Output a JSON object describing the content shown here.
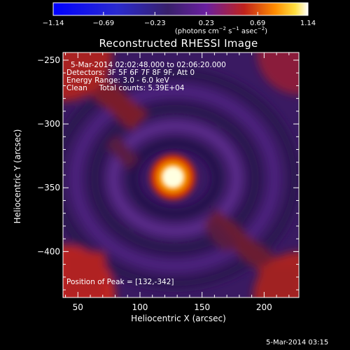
{
  "chart_data": {
    "type": "heatmap",
    "title": "Reconstructed RHESSI Image",
    "xlabel": "Heliocentric X (arcsec)",
    "ylabel": "Heliocentric Y (arcsec)",
    "xlim": [
      38,
      228
    ],
    "ylim": [
      -436,
      -244
    ],
    "xticks": [
      50,
      100,
      150,
      200
    ],
    "yticks": [
      -250,
      -300,
      -350,
      -400
    ],
    "xtick_labels": [
      "50",
      "100",
      "150",
      "200"
    ],
    "ytick_labels": [
      "−250",
      "−300",
      "−350",
      "−400"
    ],
    "peak": {
      "x": 132,
      "y": -342
    },
    "colorbar": {
      "min": -1.14,
      "max": 1.14,
      "ticks": [
        -1.14,
        -0.69,
        -0.23,
        0.23,
        0.69,
        1.14
      ],
      "tick_labels": [
        "−1.14",
        "−0.69",
        "−0.23",
        "0.23",
        "0.69",
        "1.14"
      ],
      "unit_parts": [
        "(photons cm",
        "−2",
        " s",
        "−1",
        " asec",
        "−2",
        ")"
      ]
    },
    "colors": {
      "background": "#000000",
      "text": "#ffffff"
    }
  },
  "annotations": {
    "line1": "5-Mar-2014 02:02:48.000 to 02:06:20.000",
    "line2": "Detectors: 3F 5F 6F 7F 8F 9F, Att 0",
    "line3": "Energy Range: 3.0 - 6.0 keV",
    "line4": "Clean     Total counts: 5.39E+04",
    "peak_text": "Position of Peak = [132,-342]"
  },
  "timestamp": "5-Mar-2014 03:15"
}
